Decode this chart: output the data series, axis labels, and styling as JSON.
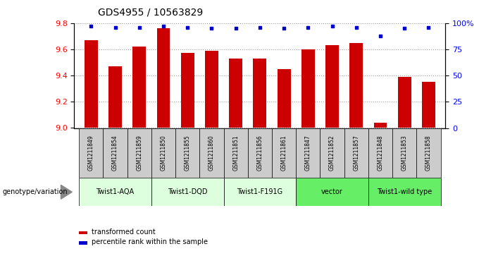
{
  "title": "GDS4955 / 10563829",
  "samples": [
    "GSM1211849",
    "GSM1211854",
    "GSM1211859",
    "GSM1211850",
    "GSM1211855",
    "GSM1211860",
    "GSM1211851",
    "GSM1211856",
    "GSM1211861",
    "GSM1211847",
    "GSM1211852",
    "GSM1211857",
    "GSM1211848",
    "GSM1211853",
    "GSM1211858"
  ],
  "transformed_counts": [
    9.67,
    9.47,
    9.62,
    9.76,
    9.57,
    9.59,
    9.53,
    9.53,
    9.45,
    9.6,
    9.63,
    9.65,
    9.04,
    9.39,
    9.35
  ],
  "percentile_ranks": [
    97,
    96,
    96,
    97,
    96,
    95,
    95,
    96,
    95,
    96,
    97,
    96,
    88,
    95,
    96
  ],
  "ylim_left": [
    9.0,
    9.8
  ],
  "ylim_right": [
    0,
    100
  ],
  "yticks_left": [
    9.0,
    9.2,
    9.4,
    9.6,
    9.8
  ],
  "yticks_right": [
    0,
    25,
    50,
    75,
    100
  ],
  "ytick_labels_right": [
    "0",
    "25",
    "50",
    "75",
    "100%"
  ],
  "bar_color": "#cc0000",
  "dot_color": "#0000cc",
  "grid_color": "#999999",
  "bg_color": "#ffffff",
  "groups": [
    {
      "label": "Twist1-AQA",
      "start": 0,
      "end": 3,
      "color": "#ddffdd"
    },
    {
      "label": "Twist1-DQD",
      "start": 3,
      "end": 6,
      "color": "#ddffdd"
    },
    {
      "label": "Twist1-F191G",
      "start": 6,
      "end": 9,
      "color": "#ddffdd"
    },
    {
      "label": "vector",
      "start": 9,
      "end": 12,
      "color": "#66ee66"
    },
    {
      "label": "Twist1-wild type",
      "start": 12,
      "end": 15,
      "color": "#66ee66"
    }
  ],
  "legend_bar_label": "transformed count",
  "legend_dot_label": "percentile rank within the sample",
  "genotype_label": "genotype/variation",
  "sample_box_color": "#cccccc",
  "title_fontsize": 10,
  "tick_fontsize": 8,
  "bar_width": 0.55
}
